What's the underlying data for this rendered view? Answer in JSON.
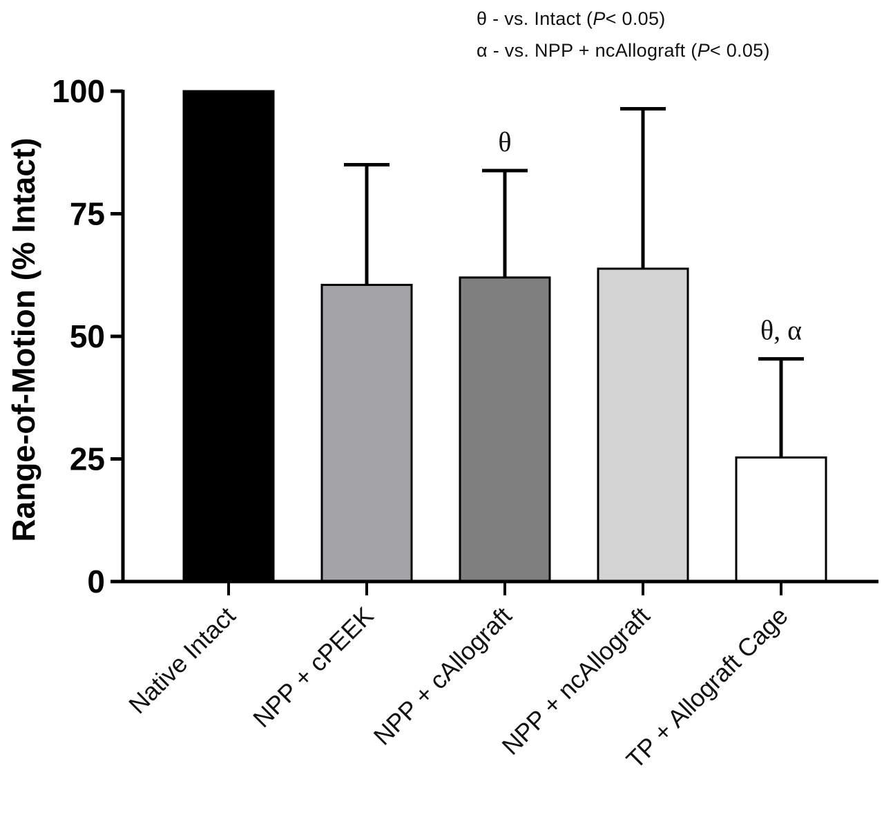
{
  "legend": {
    "theta": {
      "prefix": "θ - vs. Intact (",
      "p": "P",
      "suffix": "< 0.05)"
    },
    "alpha": {
      "prefix": "α - vs. NPP + ncAllograft (",
      "p": "P",
      "suffix": "< 0.05)"
    }
  },
  "chart_data": {
    "type": "bar",
    "ylabel": "Range-of-Motion (% Intact)",
    "ylim": [
      0,
      100
    ],
    "yticks": [
      "0",
      "25",
      "50",
      "75",
      "100"
    ],
    "categories": [
      "Native Intact",
      "NPP + cPEEK",
      "NPP + cAllograft",
      "NPP + ncAllograft",
      "TP + Allograft Cage"
    ],
    "values": [
      100,
      60.5,
      62,
      63.8,
      25.3
    ],
    "error_upper": [
      null,
      85,
      83.8,
      96.4,
      45.4
    ],
    "bar_colors": [
      "#000000",
      "#a4a4a8",
      "#7f7f7f",
      "#d4d4d4",
      "#ffffff"
    ],
    "annotations": [
      "",
      "",
      "θ",
      "",
      "θ, α"
    ]
  }
}
